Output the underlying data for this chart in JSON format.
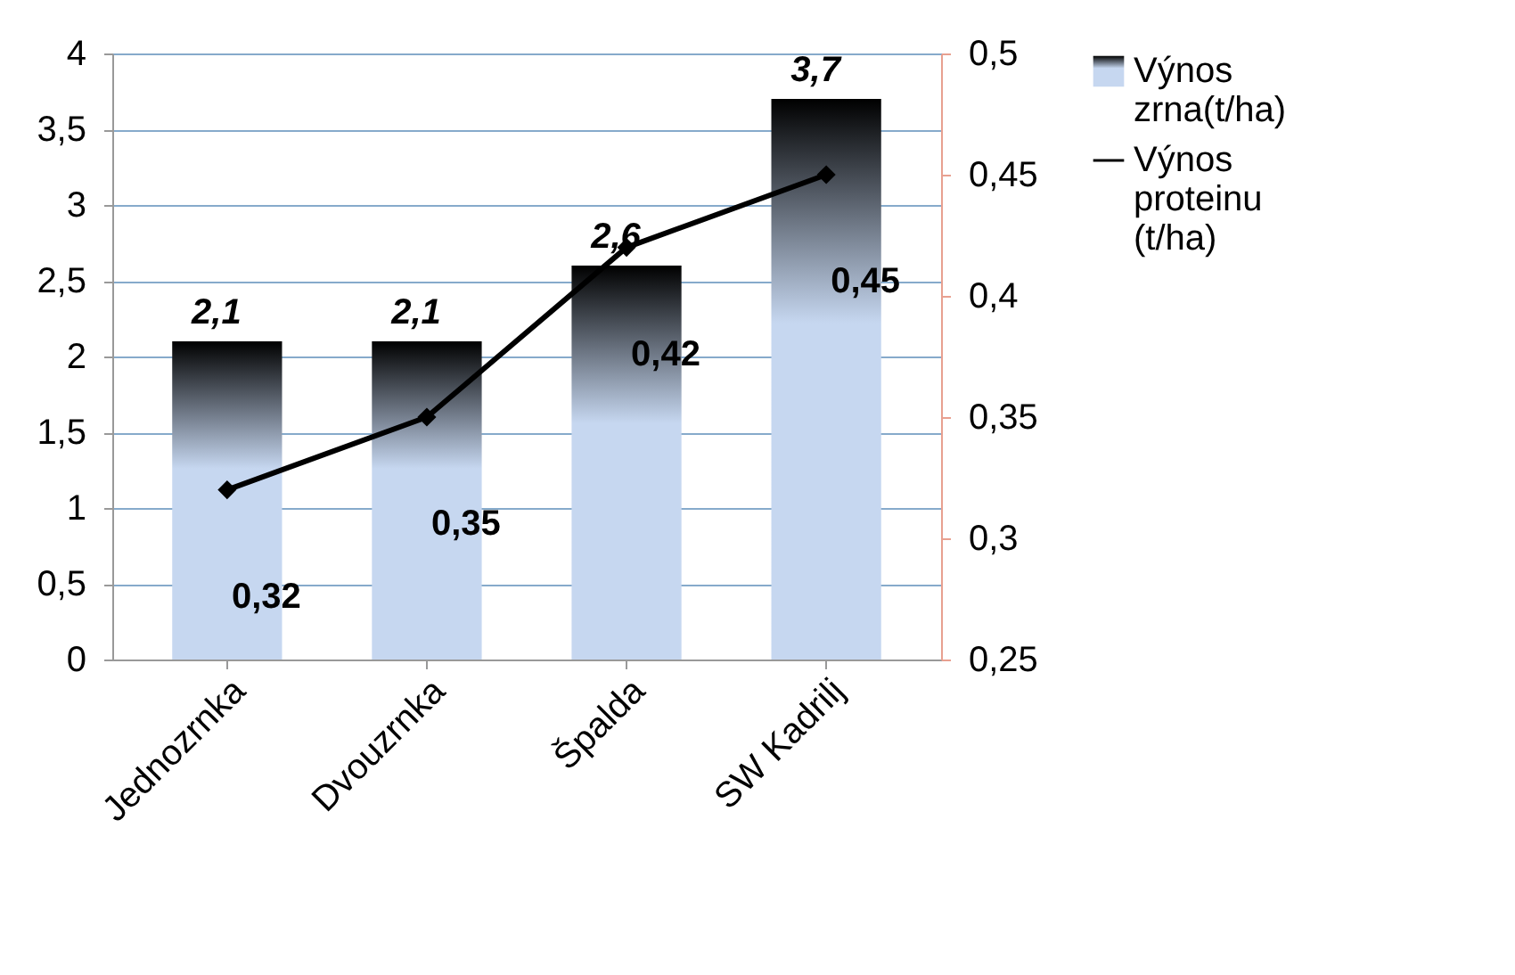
{
  "chart_data": {
    "type": "bar",
    "categories": [
      "Jednozrnka",
      "Dvouzrnka",
      "Špalda",
      "SW Kadrilj"
    ],
    "series": [
      {
        "name": "Výnos zrna(t/ha)",
        "color": "#c6d7f0",
        "values": [
          2.1,
          2.1,
          2.6,
          3.7
        ],
        "value_labels": [
          "2,1",
          "2,1",
          "2,6",
          "3,7"
        ]
      },
      {
        "name": "Výnos proteinu (t/ha)",
        "type": "line",
        "axis": "y2",
        "color": "#000000",
        "marker": "diamond",
        "values": [
          0.32,
          0.35,
          0.42,
          0.45
        ],
        "value_labels": [
          "0,32",
          "0,35",
          "0,42",
          "0,45"
        ]
      }
    ],
    "ylim": [
      0,
      4
    ],
    "yticks": [
      0,
      {
        "value": 0.5,
        "label": "0,5"
      },
      1,
      {
        "value": 1.5,
        "label": "1,5"
      },
      2,
      {
        "value": 2.5,
        "label": "2,5"
      },
      3,
      {
        "value": 3.5,
        "label": "3,5"
      },
      4
    ],
    "y2lim": [
      0.25,
      0.5
    ],
    "y2ticks": [
      {
        "value": 0.25,
        "label": "0,25"
      },
      {
        "value": 0.3,
        "label": "0,3"
      },
      {
        "value": 0.35,
        "label": "0,35"
      },
      {
        "value": 0.4,
        "label": "0,4"
      },
      {
        "value": 0.45,
        "label": "0,45"
      },
      {
        "value": 0.5,
        "label": "0,5"
      }
    ],
    "grid": "y",
    "legend": "right"
  }
}
